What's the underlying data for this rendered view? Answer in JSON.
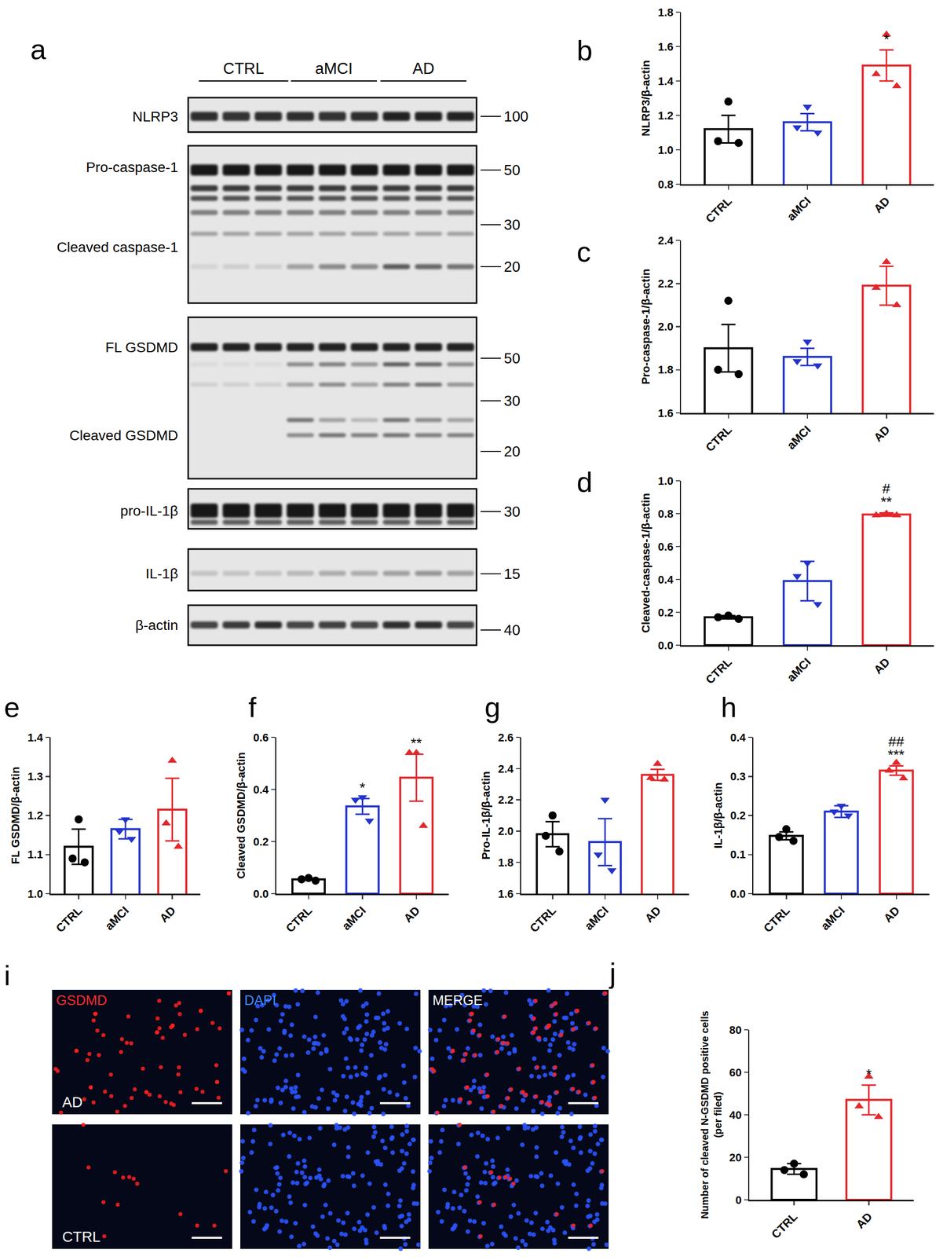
{
  "figure": {
    "blot": {
      "panel": "a",
      "groups": [
        "CTRL",
        "aMCI",
        "AD"
      ],
      "boxes": [
        {
          "labels": [
            "NLRP3"
          ],
          "markers": [
            100
          ]
        },
        {
          "labels": [
            "Pro-caspase-1",
            "Cleaved caspase-1"
          ],
          "markers": [
            50,
            30,
            20
          ]
        },
        {
          "labels": [
            "FL GSDMD",
            "Cleaved GSDMD"
          ],
          "markers": [
            50,
            30,
            20
          ]
        },
        {
          "labels": [
            "pro-IL-1β"
          ],
          "markers": [
            30
          ]
        },
        {
          "labels": [
            "IL-1β"
          ],
          "markers": [
            15
          ]
        },
        {
          "labels": [
            "β-actin"
          ],
          "markers": [
            40
          ]
        }
      ]
    },
    "images": {
      "panel": "i",
      "channels": [
        "GSDMD",
        "DAPI",
        "MERGE"
      ],
      "rows": [
        "AD",
        "CTRL"
      ]
    }
  },
  "chart_data": [
    {
      "panel": "b",
      "type": "bar",
      "ylabel": "NLRP3/β-actin",
      "categories": [
        "CTRL",
        "aMCI",
        "AD"
      ],
      "values": [
        1.12,
        1.16,
        1.49
      ],
      "error": [
        0.08,
        0.05,
        0.09
      ],
      "points": [
        [
          1.28,
          1.05,
          1.04
        ],
        [
          1.25,
          1.13,
          1.1
        ],
        [
          1.67,
          1.44,
          1.37
        ]
      ],
      "colors": [
        "#000000",
        "#2233cc",
        "#e3272b"
      ],
      "ylim": [
        0.8,
        1.8
      ],
      "yticks": [
        0.8,
        {
          "value": 1,
          "label": "1.0"
        },
        1.2,
        1.4,
        1.6,
        1.8
      ],
      "annotations": [
        {
          "category": "AD",
          "text": "*"
        }
      ]
    },
    {
      "panel": "c",
      "type": "bar",
      "ylabel": "Pro-caspase-1/β-actin",
      "categories": [
        "CTRL",
        "aMCI",
        "AD"
      ],
      "values": [
        1.9,
        1.86,
        2.19
      ],
      "error": [
        0.11,
        0.04,
        0.09
      ],
      "points": [
        [
          2.12,
          1.8,
          1.78
        ],
        [
          1.93,
          1.84,
          1.82
        ],
        [
          2.3,
          2.18,
          2.1
        ]
      ],
      "colors": [
        "#000000",
        "#2233cc",
        "#e3272b"
      ],
      "ylim": [
        1.6,
        2.4
      ],
      "yticks": [
        1.6,
        1.8,
        {
          "value": 2,
          "label": "2.0"
        },
        2.2,
        2.4
      ],
      "annotations": []
    },
    {
      "panel": "d",
      "type": "bar",
      "ylabel": "Cleaved-caspase-1/β-actin",
      "categories": [
        "CTRL",
        "aMCI",
        "AD"
      ],
      "values": [
        0.17,
        0.39,
        0.795
      ],
      "error": [
        0.01,
        0.12,
        0.01
      ],
      "points": [
        [
          0.18,
          0.17,
          0.16
        ],
        [
          0.5,
          0.42,
          0.25
        ],
        [
          0.8,
          0.79,
          0.79
        ]
      ],
      "colors": [
        "#000000",
        "#2233cc",
        "#e3272b"
      ],
      "ylim": [
        0,
        1
      ],
      "yticks": [
        {
          "value": 0,
          "label": "0.0"
        },
        0.2,
        0.4,
        0.6,
        0.8,
        {
          "value": 1,
          "label": "1.0"
        }
      ],
      "annotations": [
        {
          "category": "AD",
          "text": "**"
        },
        {
          "category": "AD",
          "text": "#"
        }
      ]
    },
    {
      "panel": "e",
      "type": "bar",
      "ylabel": "FL GSDMD/β-actin",
      "categories": [
        "CTRL",
        "aMCI",
        "AD"
      ],
      "values": [
        1.12,
        1.165,
        1.215
      ],
      "error": [
        0.045,
        0.025,
        0.08
      ],
      "points": [
        [
          1.19,
          1.09,
          1.08
        ],
        [
          1.19,
          1.16,
          1.14
        ],
        [
          1.34,
          1.18,
          1.12
        ]
      ],
      "colors": [
        "#000000",
        "#2233cc",
        "#e3272b"
      ],
      "ylim": [
        1,
        1.4
      ],
      "yticks": [
        {
          "value": 1,
          "label": "1.0"
        },
        1.1,
        1.2,
        1.3,
        1.4
      ],
      "annotations": []
    },
    {
      "panel": "f",
      "type": "bar",
      "ylabel": "Cleaved GSDMD/β-actin",
      "categories": [
        "CTRL",
        "aMCI",
        "AD"
      ],
      "values": [
        0.055,
        0.335,
        0.445
      ],
      "error": [
        0.003,
        0.03,
        0.09
      ],
      "points": [
        [
          0.06,
          0.055,
          0.05
        ],
        [
          0.37,
          0.36,
          0.28
        ],
        [
          0.54,
          0.54,
          0.26
        ]
      ],
      "colors": [
        "#000000",
        "#2233cc",
        "#e3272b"
      ],
      "ylim": [
        0,
        0.6
      ],
      "yticks": [
        {
          "value": 0,
          "label": "0.0"
        },
        0.2,
        0.4,
        0.6
      ],
      "annotations": [
        {
          "category": "aMCI",
          "text": "*"
        },
        {
          "category": "AD",
          "text": "**"
        }
      ]
    },
    {
      "panel": "g",
      "type": "bar",
      "ylabel": "Pro-IL-1β/β-actin",
      "categories": [
        "CTRL",
        "aMCI",
        "AD"
      ],
      "values": [
        1.98,
        1.93,
        2.36
      ],
      "error": [
        0.08,
        0.15,
        0.035
      ],
      "points": [
        [
          2.1,
          1.97,
          1.87
        ],
        [
          2.2,
          1.85,
          1.75
        ],
        [
          2.43,
          2.34,
          2.33
        ]
      ],
      "colors": [
        "#000000",
        "#2233cc",
        "#e3272b"
      ],
      "ylim": [
        1.6,
        2.6
      ],
      "yticks": [
        1.6,
        1.8,
        {
          "value": 2,
          "label": "2.0"
        },
        2.2,
        2.4,
        2.6
      ],
      "annotations": []
    },
    {
      "panel": "h",
      "type": "bar",
      "ylabel": "IL-1β/β-actin",
      "categories": [
        "CTRL",
        "aMCI",
        "AD"
      ],
      "values": [
        0.148,
        0.21,
        0.315
      ],
      "error": [
        0.01,
        0.015,
        0.012
      ],
      "points": [
        [
          0.165,
          0.145,
          0.135
        ],
        [
          0.225,
          0.21,
          0.2
        ],
        [
          0.335,
          0.315,
          0.295
        ]
      ],
      "colors": [
        "#000000",
        "#2233cc",
        "#e3272b"
      ],
      "ylim": [
        0,
        0.4
      ],
      "yticks": [
        {
          "value": 0,
          "label": "0.0"
        },
        0.1,
        0.2,
        0.3,
        0.4
      ],
      "annotations": [
        {
          "category": "AD",
          "text": "***"
        },
        {
          "category": "AD",
          "text": "##"
        }
      ]
    },
    {
      "panel": "j",
      "type": "bar",
      "ylabel": "Number of cleaved N-GSDMD positive cells\n(per filed)",
      "categories": [
        "CTRL",
        "AD"
      ],
      "values": [
        14.5,
        47
      ],
      "error": [
        2.5,
        7
      ],
      "points": [
        [
          17,
          14,
          12
        ],
        [
          58,
          44,
          39
        ]
      ],
      "colors": [
        "#000000",
        "#e3272b"
      ],
      "ylim": [
        0,
        80
      ],
      "yticks": [
        0,
        20,
        40,
        60,
        80
      ],
      "annotations": [
        {
          "category": "AD",
          "text": "*"
        }
      ]
    }
  ]
}
